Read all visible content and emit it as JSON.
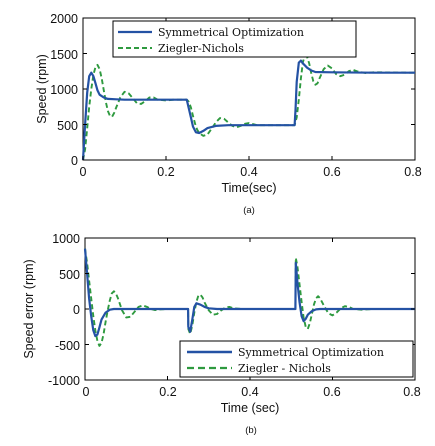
{
  "chart_data": [
    {
      "type": "line",
      "caption": "(a)",
      "xlabel": "Time(sec)",
      "ylabel": "Speed (rpm)",
      "xlim": [
        0,
        0.8
      ],
      "ylim": [
        0,
        2000
      ],
      "xticks": [
        "0",
        "0.2",
        "0.4",
        "0.6",
        "0.8"
      ],
      "yticks": [
        "0",
        "500",
        "1000",
        "1500",
        "2000"
      ],
      "grid": false,
      "legend_position": "top-center",
      "series": [
        {
          "name": "Symmetrical Optimization",
          "color": "#2452a4",
          "dash": "solid",
          "points": [
            [
              0,
              0
            ],
            [
              0.005,
              500
            ],
            [
              0.01,
              950
            ],
            [
              0.015,
              1180
            ],
            [
              0.02,
              1230
            ],
            [
              0.025,
              1180
            ],
            [
              0.03,
              1080
            ],
            [
              0.035,
              980
            ],
            [
              0.04,
              920
            ],
            [
              0.05,
              880
            ],
            [
              0.06,
              860
            ],
            [
              0.08,
              855
            ],
            [
              0.1,
              850
            ],
            [
              0.15,
              850
            ],
            [
              0.2,
              850
            ],
            [
              0.25,
              850
            ],
            [
              0.252,
              800
            ],
            [
              0.26,
              600
            ],
            [
              0.265,
              470
            ],
            [
              0.272,
              390
            ],
            [
              0.28,
              380
            ],
            [
              0.29,
              410
            ],
            [
              0.3,
              450
            ],
            [
              0.32,
              480
            ],
            [
              0.35,
              490
            ],
            [
              0.4,
              490
            ],
            [
              0.45,
              490
            ],
            [
              0.51,
              490
            ],
            [
              0.512,
              700
            ],
            [
              0.515,
              1100
            ],
            [
              0.52,
              1370
            ],
            [
              0.525,
              1400
            ],
            [
              0.53,
              1360
            ],
            [
              0.54,
              1300
            ],
            [
              0.55,
              1260
            ],
            [
              0.56,
              1240
            ],
            [
              0.6,
              1235
            ],
            [
              0.7,
              1230
            ],
            [
              0.8,
              1230
            ]
          ]
        },
        {
          "name": "Ziegler-Nichols",
          "color": "#2e9a3f",
          "dash": "dashed",
          "points": [
            [
              0,
              0
            ],
            [
              0.005,
              150
            ],
            [
              0.01,
              450
            ],
            [
              0.015,
              750
            ],
            [
              0.02,
              1000
            ],
            [
              0.025,
              1200
            ],
            [
              0.03,
              1310
            ],
            [
              0.035,
              1340
            ],
            [
              0.04,
              1280
            ],
            [
              0.045,
              1150
            ],
            [
              0.05,
              980
            ],
            [
              0.055,
              820
            ],
            [
              0.06,
              690
            ],
            [
              0.065,
              620
            ],
            [
              0.07,
              610
            ],
            [
              0.075,
              660
            ],
            [
              0.08,
              740
            ],
            [
              0.09,
              880
            ],
            [
              0.1,
              960
            ],
            [
              0.11,
              940
            ],
            [
              0.12,
              870
            ],
            [
              0.13,
              800
            ],
            [
              0.14,
              790
            ],
            [
              0.15,
              830
            ],
            [
              0.16,
              880
            ],
            [
              0.17,
              880
            ],
            [
              0.18,
              850
            ],
            [
              0.2,
              840
            ],
            [
              0.22,
              850
            ],
            [
              0.25,
              850
            ],
            [
              0.255,
              820
            ],
            [
              0.26,
              740
            ],
            [
              0.265,
              620
            ],
            [
              0.27,
              510
            ],
            [
              0.275,
              430
            ],
            [
              0.28,
              380
            ],
            [
              0.29,
              340
            ],
            [
              0.3,
              360
            ],
            [
              0.31,
              440
            ],
            [
              0.32,
              530
            ],
            [
              0.33,
              590
            ],
            [
              0.34,
              580
            ],
            [
              0.35,
              530
            ],
            [
              0.36,
              480
            ],
            [
              0.37,
              460
            ],
            [
              0.38,
              480
            ],
            [
              0.39,
              510
            ],
            [
              0.4,
              520
            ],
            [
              0.42,
              490
            ],
            [
              0.45,
              490
            ],
            [
              0.51,
              490
            ],
            [
              0.515,
              600
            ],
            [
              0.52,
              850
            ],
            [
              0.525,
              1150
            ],
            [
              0.53,
              1380
            ],
            [
              0.535,
              1470
            ],
            [
              0.54,
              1450
            ],
            [
              0.545,
              1360
            ],
            [
              0.55,
              1220
            ],
            [
              0.555,
              1110
            ],
            [
              0.56,
              1060
            ],
            [
              0.565,
              1080
            ],
            [
              0.57,
              1150
            ],
            [
              0.58,
              1280
            ],
            [
              0.59,
              1330
            ],
            [
              0.6,
              1290
            ],
            [
              0.61,
              1210
            ],
            [
              0.62,
              1180
            ],
            [
              0.63,
              1200
            ],
            [
              0.64,
              1250
            ],
            [
              0.65,
              1270
            ],
            [
              0.66,
              1250
            ],
            [
              0.68,
              1225
            ],
            [
              0.7,
              1235
            ],
            [
              0.8,
              1230
            ]
          ]
        }
      ]
    },
    {
      "type": "line",
      "caption": "(b)",
      "xlabel": "Time (sec)",
      "ylabel": "Speed error (rpm)",
      "xlim": [
        0,
        0.8
      ],
      "ylim": [
        -1000,
        1000
      ],
      "xticks": [
        "0",
        "0.2",
        "0.4",
        "0.6",
        "0.8"
      ],
      "yticks": [
        "-1000",
        "-500",
        "0",
        "500",
        "1000"
      ],
      "grid": false,
      "legend_position": "bottom-right",
      "series": [
        {
          "name": "Symmetrical Optimization",
          "color": "#2452a4",
          "dash": "solid",
          "points": [
            [
              0,
              850
            ],
            [
              0.005,
              500
            ],
            [
              0.01,
              150
            ],
            [
              0.015,
              -100
            ],
            [
              0.02,
              -300
            ],
            [
              0.025,
              -380
            ],
            [
              0.03,
              -360
            ],
            [
              0.035,
              -260
            ],
            [
              0.04,
              -150
            ],
            [
              0.05,
              -50
            ],
            [
              0.06,
              -10
            ],
            [
              0.07,
              0
            ],
            [
              0.25,
              0
            ],
            [
              0.2505,
              -250
            ],
            [
              0.255,
              -320
            ],
            [
              0.26,
              -150
            ],
            [
              0.265,
              30
            ],
            [
              0.27,
              80
            ],
            [
              0.28,
              60
            ],
            [
              0.29,
              30
            ],
            [
              0.3,
              10
            ],
            [
              0.32,
              0
            ],
            [
              0.51,
              0
            ],
            [
              0.511,
              650
            ],
            [
              0.515,
              380
            ],
            [
              0.52,
              100
            ],
            [
              0.525,
              -100
            ],
            [
              0.53,
              -170
            ],
            [
              0.535,
              -140
            ],
            [
              0.54,
              -80
            ],
            [
              0.55,
              -30
            ],
            [
              0.56,
              -5
            ],
            [
              0.57,
              0
            ],
            [
              0.8,
              0
            ]
          ]
        },
        {
          "name": "Ziegler - Nichols",
          "color": "#2e9a3f",
          "dash": "dashed",
          "points": [
            [
              0,
              850
            ],
            [
              0.005,
              650
            ],
            [
              0.01,
              400
            ],
            [
              0.015,
              150
            ],
            [
              0.02,
              -100
            ],
            [
              0.025,
              -300
            ],
            [
              0.03,
              -450
            ],
            [
              0.035,
              -520
            ],
            [
              0.04,
              -480
            ],
            [
              0.045,
              -350
            ],
            [
              0.05,
              -180
            ],
            [
              0.055,
              -20
            ],
            [
              0.06,
              120
            ],
            [
              0.065,
              220
            ],
            [
              0.07,
              250
            ],
            [
              0.075,
              220
            ],
            [
              0.08,
              150
            ],
            [
              0.09,
              -20
            ],
            [
              0.1,
              -120
            ],
            [
              0.11,
              -110
            ],
            [
              0.12,
              -40
            ],
            [
              0.13,
              30
            ],
            [
              0.14,
              50
            ],
            [
              0.15,
              30
            ],
            [
              0.16,
              0
            ],
            [
              0.17,
              -15
            ],
            [
              0.18,
              -5
            ],
            [
              0.2,
              0
            ],
            [
              0.25,
              0
            ],
            [
              0.2505,
              -280
            ],
            [
              0.255,
              -350
            ],
            [
              0.26,
              -230
            ],
            [
              0.265,
              -50
            ],
            [
              0.27,
              100
            ],
            [
              0.275,
              190
            ],
            [
              0.28,
              200
            ],
            [
              0.285,
              160
            ],
            [
              0.29,
              90
            ],
            [
              0.3,
              -20
            ],
            [
              0.31,
              -80
            ],
            [
              0.32,
              -70
            ],
            [
              0.33,
              -20
            ],
            [
              0.34,
              20
            ],
            [
              0.35,
              30
            ],
            [
              0.36,
              10
            ],
            [
              0.38,
              0
            ],
            [
              0.51,
              0
            ],
            [
              0.511,
              720
            ],
            [
              0.515,
              600
            ],
            [
              0.52,
              350
            ],
            [
              0.525,
              100
            ],
            [
              0.53,
              -120
            ],
            [
              0.535,
              -250
            ],
            [
              0.54,
              -280
            ],
            [
              0.545,
              -200
            ],
            [
              0.55,
              -70
            ],
            [
              0.555,
              60
            ],
            [
              0.56,
              150
            ],
            [
              0.565,
              180
            ],
            [
              0.57,
              150
            ],
            [
              0.58,
              40
            ],
            [
              0.59,
              -60
            ],
            [
              0.6,
              -90
            ],
            [
              0.61,
              -50
            ],
            [
              0.62,
              10
            ],
            [
              0.63,
              40
            ],
            [
              0.64,
              30
            ],
            [
              0.65,
              0
            ],
            [
              0.67,
              -10
            ],
            [
              0.7,
              0
            ],
            [
              0.8,
              0
            ]
          ]
        }
      ]
    }
  ]
}
